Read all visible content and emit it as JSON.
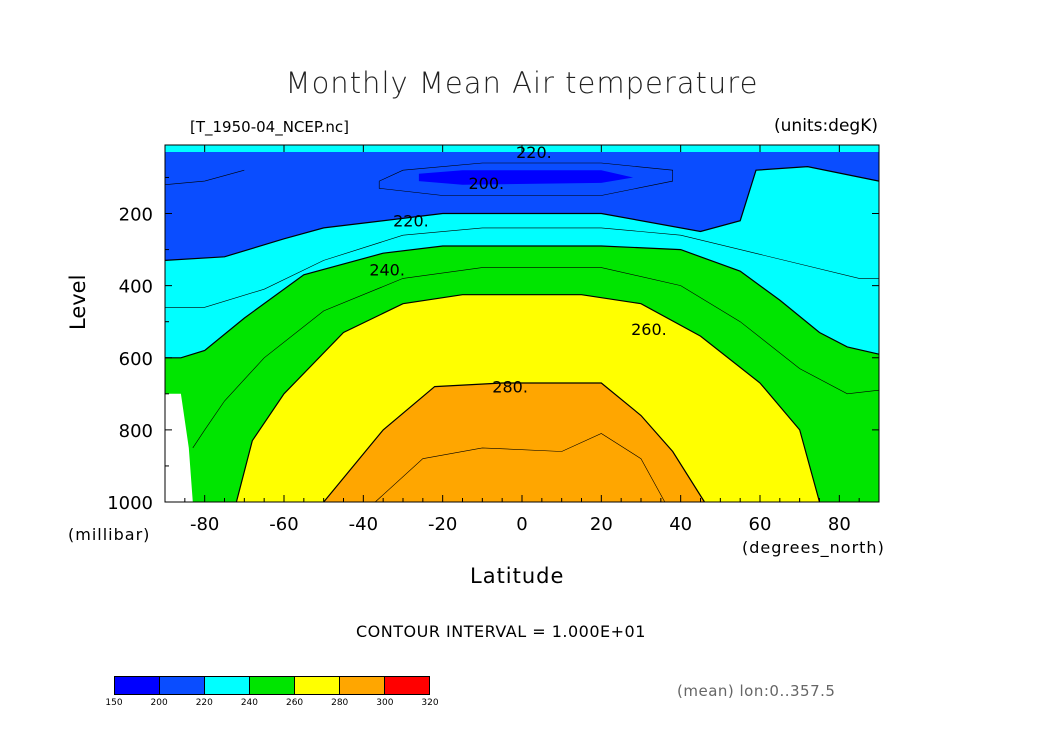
{
  "chart_data": {
    "type": "heatmap",
    "title": "Monthly Mean Air temperature",
    "file_label": "[T_1950-04_NCEP.nc]",
    "units_label": "(units:degK)",
    "xlabel": "Latitude",
    "x_unit_label": "(degrees_north)",
    "ylabel": "Level",
    "y_unit_label": "(millibar)",
    "xlim": [
      -90,
      90
    ],
    "ylim": [
      1000,
      10
    ],
    "x_ticks": [
      "-80",
      "-60",
      "-40",
      "-20",
      "0",
      "20",
      "40",
      "60",
      "80"
    ],
    "x_tick_values": [
      -80,
      -60,
      -40,
      -20,
      0,
      20,
      40,
      60,
      80
    ],
    "y_ticks": [
      "200",
      "400",
      "600",
      "800",
      "1000"
    ],
    "y_tick_values": [
      200,
      400,
      600,
      800,
      1000
    ],
    "contour_labels": [
      {
        "text": "220.",
        "lat": 3,
        "level": 30
      },
      {
        "text": "200.",
        "lat": -9,
        "level": 115
      },
      {
        "text": "220.",
        "lat": -28,
        "level": 220
      },
      {
        "text": "240.",
        "lat": -34,
        "level": 355
      },
      {
        "text": "260.",
        "lat": 32,
        "level": 520
      },
      {
        "text": "280.",
        "lat": -3,
        "level": 680
      }
    ],
    "filled_bands": [
      {
        "range": "200-220",
        "boundary": [
          [
            -90,
            10
          ],
          [
            90,
            10
          ],
          [
            90,
            110
          ],
          [
            72,
            70
          ],
          [
            59,
            80
          ],
          [
            55,
            220
          ],
          [
            45,
            250
          ],
          [
            20,
            200
          ],
          [
            -20,
            200
          ],
          [
            -50,
            240
          ],
          [
            -60,
            270
          ],
          [
            -75,
            320
          ],
          [
            -90,
            330
          ]
        ]
      },
      {
        "range": "220-240",
        "boundary": [
          [
            -90,
            330
          ],
          [
            -75,
            320
          ],
          [
            -60,
            270
          ],
          [
            -50,
            240
          ],
          [
            -20,
            200
          ],
          [
            20,
            200
          ],
          [
            45,
            250
          ],
          [
            55,
            220
          ],
          [
            59,
            80
          ],
          [
            72,
            70
          ],
          [
            90,
            110
          ],
          [
            90,
            590
          ],
          [
            82,
            570
          ],
          [
            75,
            530
          ],
          [
            65,
            440
          ],
          [
            55,
            360
          ],
          [
            40,
            300
          ],
          [
            20,
            290
          ],
          [
            -20,
            290
          ],
          [
            -35,
            310
          ],
          [
            -55,
            370
          ],
          [
            -70,
            490
          ],
          [
            -80,
            580
          ],
          [
            -86,
            600
          ],
          [
            -90,
            600
          ]
        ]
      },
      {
        "range": "240-260",
        "boundary": [
          [
            -90,
            600
          ],
          [
            -86,
            600
          ],
          [
            -80,
            580
          ],
          [
            -70,
            490
          ],
          [
            -55,
            370
          ],
          [
            -35,
            310
          ],
          [
            -20,
            290
          ],
          [
            20,
            290
          ],
          [
            40,
            300
          ],
          [
            55,
            360
          ],
          [
            65,
            440
          ],
          [
            75,
            530
          ],
          [
            82,
            570
          ],
          [
            90,
            590
          ],
          [
            90,
            1000
          ],
          [
            75,
            1000
          ],
          [
            70,
            800
          ],
          [
            60,
            670
          ],
          [
            45,
            540
          ],
          [
            30,
            450
          ],
          [
            15,
            425
          ],
          [
            -15,
            425
          ],
          [
            -30,
            450
          ],
          [
            -45,
            530
          ],
          [
            -60,
            700
          ],
          [
            -68,
            830
          ],
          [
            -72,
            1000
          ],
          [
            -83,
            1000
          ],
          [
            -84,
            850
          ],
          [
            -86,
            700
          ],
          [
            -90,
            700
          ]
        ]
      },
      {
        "range": "260-280",
        "boundary": [
          [
            -72,
            1000
          ],
          [
            -68,
            830
          ],
          [
            -60,
            700
          ],
          [
            -45,
            530
          ],
          [
            -30,
            450
          ],
          [
            -15,
            425
          ],
          [
            15,
            425
          ],
          [
            30,
            450
          ],
          [
            45,
            540
          ],
          [
            60,
            670
          ],
          [
            70,
            800
          ],
          [
            75,
            1000
          ]
        ]
      },
      {
        "range": "280-300",
        "boundary": [
          [
            -50,
            1000
          ],
          [
            -35,
            800
          ],
          [
            -22,
            680
          ],
          [
            -5,
            670
          ],
          [
            20,
            670
          ],
          [
            30,
            760
          ],
          [
            38,
            860
          ],
          [
            46,
            1000
          ]
        ]
      },
      {
        "range": "190-200",
        "boundary": [
          [
            -26,
            90
          ],
          [
            -15,
            80
          ],
          [
            20,
            80
          ],
          [
            28,
            100
          ],
          [
            20,
            115
          ],
          [
            -15,
            120
          ],
          [
            -26,
            110
          ]
        ]
      }
    ],
    "contour_lines": [
      [
        [
          -90,
          330
        ],
        [
          -75,
          320
        ],
        [
          -60,
          270
        ],
        [
          -50,
          240
        ],
        [
          -20,
          200
        ],
        [
          20,
          200
        ],
        [
          45,
          250
        ],
        [
          55,
          220
        ],
        [
          59,
          80
        ],
        [
          72,
          70
        ],
        [
          90,
          110
        ]
      ],
      [
        [
          -90,
          600
        ],
        [
          -86,
          600
        ],
        [
          -80,
          580
        ],
        [
          -70,
          490
        ],
        [
          -55,
          370
        ],
        [
          -35,
          310
        ],
        [
          -20,
          290
        ],
        [
          20,
          290
        ],
        [
          40,
          300
        ],
        [
          55,
          360
        ],
        [
          65,
          440
        ],
        [
          75,
          530
        ],
        [
          82,
          570
        ],
        [
          90,
          590
        ]
      ],
      [
        [
          -72,
          1000
        ],
        [
          -68,
          830
        ],
        [
          -60,
          700
        ],
        [
          -45,
          530
        ],
        [
          -30,
          450
        ],
        [
          -15,
          425
        ],
        [
          15,
          425
        ],
        [
          30,
          450
        ],
        [
          45,
          540
        ],
        [
          60,
          670
        ],
        [
          70,
          800
        ],
        [
          75,
          1000
        ]
      ],
      [
        [
          -50,
          1000
        ],
        [
          -35,
          800
        ],
        [
          -22,
          680
        ],
        [
          -5,
          670
        ],
        [
          20,
          670
        ],
        [
          30,
          760
        ],
        [
          38,
          860
        ],
        [
          46,
          1000
        ]
      ]
    ],
    "thin_lines": [
      [
        [
          -90,
          120
        ],
        [
          -80,
          110
        ],
        [
          -70,
          80
        ]
      ],
      [
        [
          -90,
          460
        ],
        [
          -80,
          460
        ],
        [
          -65,
          410
        ],
        [
          -50,
          330
        ],
        [
          -30,
          260
        ],
        [
          -10,
          240
        ],
        [
          20,
          240
        ],
        [
          40,
          260
        ],
        [
          55,
          300
        ],
        [
          70,
          340
        ],
        [
          85,
          380
        ],
        [
          90,
          380
        ]
      ],
      [
        [
          -83,
          850
        ],
        [
          -80,
          800
        ],
        [
          -75,
          720
        ],
        [
          -65,
          600
        ],
        [
          -50,
          470
        ],
        [
          -30,
          380
        ],
        [
          -10,
          350
        ],
        [
          20,
          350
        ],
        [
          40,
          400
        ],
        [
          55,
          500
        ],
        [
          70,
          630
        ],
        [
          82,
          700
        ],
        [
          90,
          690
        ]
      ],
      [
        [
          -37,
          1000
        ],
        [
          -25,
          880
        ],
        [
          -10,
          850
        ],
        [
          10,
          860
        ],
        [
          20,
          810
        ],
        [
          30,
          880
        ],
        [
          36,
          1000
        ]
      ],
      [
        [
          -36,
          110
        ],
        [
          -30,
          80
        ],
        [
          -10,
          60
        ],
        [
          20,
          60
        ],
        [
          38,
          80
        ],
        [
          38,
          110
        ],
        [
          20,
          150
        ],
        [
          -20,
          150
        ],
        [
          -36,
          130
        ],
        [
          -36,
          110
        ]
      ]
    ],
    "contour_interval": "CONTOUR INTERVAL = 1.000E+01",
    "mean_note": "(mean) lon:0..357.5",
    "colorbar": {
      "labels": [
        "150",
        "200",
        "220",
        "240",
        "260",
        "280",
        "300",
        "320"
      ],
      "colors": [
        "#0000ff",
        "#0a4dff",
        "#00ffff",
        "#00e500",
        "#ffff00",
        "#ffa600",
        "#ff0000"
      ]
    }
  }
}
